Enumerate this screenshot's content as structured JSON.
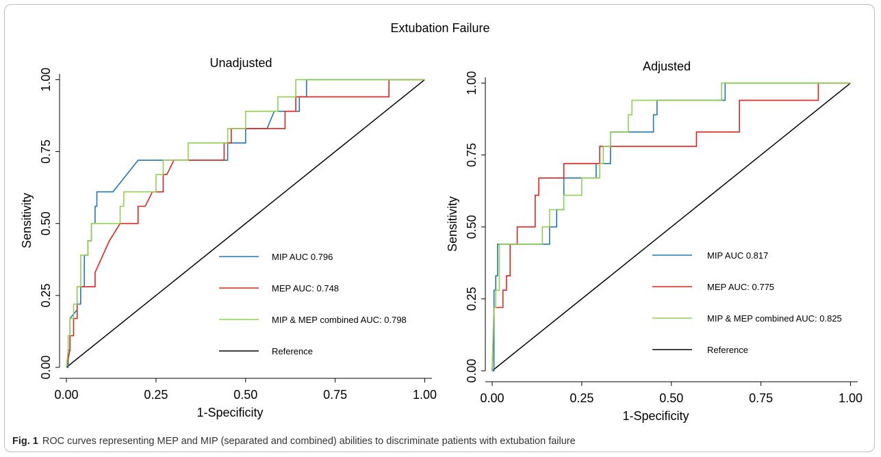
{
  "figure": {
    "overall_title": "Extubation Failure",
    "caption_label": "Fig. 1",
    "caption_text": "ROC curves representing MEP and MIP (separated and combined) abilities to discriminate patients with extubation failure"
  },
  "colors": {
    "mip": "#1f77b4",
    "mep": "#e3211c",
    "combined": "#8fd14f",
    "reference": "#000000"
  },
  "chart_data": [
    {
      "type": "line",
      "title": "Unadjusted",
      "xlabel": "1-Specificity",
      "ylabel": "Sensitivity",
      "xlim": [
        0,
        1.02
      ],
      "ylim": [
        0,
        1.02
      ],
      "xticks": [
        "0.00",
        "0.25",
        "0.50",
        "0.75",
        "1.00"
      ],
      "yticks": [
        "0.00",
        "0.25",
        "0.50",
        "0.75",
        "1.00"
      ],
      "legend": [
        "MIP AUC 0.796",
        "MEP AUC: 0.748",
        "MIP & MEP combined AUC: 0.798",
        "Reference"
      ],
      "legend_placement": "bottom-right",
      "series": [
        {
          "name": "MIP AUC 0.796",
          "color_key": "mip",
          "x": [
            0,
            0.005,
            0.005,
            0.01,
            0.01,
            0.03,
            0.03,
            0.04,
            0.04,
            0.05,
            0.05,
            0.06,
            0.06,
            0.07,
            0.07,
            0.08,
            0.08,
            0.085,
            0.085,
            0.13,
            0.2,
            0.27,
            0.33,
            0.43,
            0.45,
            0.45,
            0.48,
            0.48,
            0.5,
            0.5,
            0.56,
            0.58,
            0.58,
            0.63,
            0.63,
            0.65,
            0.65,
            0.67,
            0.67,
            1.0
          ],
          "y": [
            0,
            0,
            0.06,
            0.06,
            0.17,
            0.2,
            0.22,
            0.22,
            0.28,
            0.28,
            0.39,
            0.39,
            0.44,
            0.44,
            0.5,
            0.5,
            0.56,
            0.56,
            0.61,
            0.61,
            0.72,
            0.72,
            0.72,
            0.72,
            0.72,
            0.78,
            0.78,
            0.78,
            0.78,
            0.83,
            0.83,
            0.89,
            0.89,
            0.89,
            0.89,
            0.89,
            0.94,
            0.94,
            1.0,
            1.0
          ]
        },
        {
          "name": "MEP AUC: 0.748",
          "color_key": "mep",
          "x": [
            0,
            0.01,
            0.01,
            0.02,
            0.02,
            0.03,
            0.03,
            0.06,
            0.06,
            0.08,
            0.08,
            0.12,
            0.15,
            0.16,
            0.19,
            0.2,
            0.2,
            0.22,
            0.24,
            0.24,
            0.27,
            0.27,
            0.28,
            0.28,
            0.3,
            0.33,
            0.43,
            0.44,
            0.44,
            0.46,
            0.46,
            0.61,
            0.61,
            0.62,
            0.62,
            0.64,
            0.64,
            0.9,
            0.9,
            1.0
          ],
          "y": [
            0,
            0.06,
            0.11,
            0.11,
            0.17,
            0.17,
            0.28,
            0.28,
            0.28,
            0.28,
            0.33,
            0.44,
            0.5,
            0.5,
            0.5,
            0.5,
            0.56,
            0.56,
            0.61,
            0.61,
            0.61,
            0.67,
            0.67,
            0.67,
            0.72,
            0.72,
            0.72,
            0.72,
            0.78,
            0.78,
            0.83,
            0.83,
            0.89,
            0.89,
            0.89,
            0.89,
            0.94,
            0.94,
            1.0,
            1.0
          ]
        },
        {
          "name": "MIP & MEP combined AUC: 0.798",
          "color_key": "combined",
          "x": [
            0,
            0.005,
            0.005,
            0.01,
            0.01,
            0.02,
            0.02,
            0.03,
            0.03,
            0.04,
            0.04,
            0.06,
            0.06,
            0.07,
            0.07,
            0.08,
            0.08,
            0.15,
            0.15,
            0.16,
            0.16,
            0.25,
            0.25,
            0.27,
            0.27,
            0.34,
            0.34,
            0.45,
            0.45,
            0.5,
            0.5,
            0.59,
            0.59,
            0.61,
            0.61,
            0.64,
            0.64,
            0.66,
            0.66,
            1.0
          ],
          "y": [
            0,
            0.06,
            0.11,
            0.11,
            0.17,
            0.17,
            0.22,
            0.22,
            0.28,
            0.28,
            0.39,
            0.39,
            0.44,
            0.44,
            0.5,
            0.5,
            0.5,
            0.5,
            0.56,
            0.56,
            0.61,
            0.61,
            0.67,
            0.67,
            0.72,
            0.72,
            0.78,
            0.78,
            0.83,
            0.83,
            0.89,
            0.89,
            0.94,
            0.94,
            0.94,
            0.94,
            1.0,
            1.0,
            1.0,
            1.0
          ]
        },
        {
          "name": "Reference",
          "color_key": "reference",
          "x": [
            0,
            1.0
          ],
          "y": [
            0,
            1.0
          ]
        }
      ]
    },
    {
      "type": "line",
      "title": "Adjusted",
      "xlabel": "1-Specificity",
      "ylabel": "Sensitivity",
      "xlim": [
        0,
        1.02
      ],
      "ylim": [
        0,
        1.02
      ],
      "xticks": [
        "0.00",
        "0.25",
        "0.50",
        "0.75",
        "1.00"
      ],
      "yticks": [
        "0.00",
        "0.25",
        "0.50",
        "0.75",
        "1.00"
      ],
      "legend": [
        "MIP AUC 0.817",
        "MEP AUC: 0.775",
        "MIP & MEP combined AUC: 0.825",
        "Reference"
      ],
      "legend_placement": "bottom-right",
      "series": [
        {
          "name": "MIP AUC 0.817",
          "color_key": "mip",
          "x": [
            0,
            0.005,
            0.005,
            0.01,
            0.01,
            0.015,
            0.015,
            0.02,
            0.02,
            0.14,
            0.16,
            0.16,
            0.18,
            0.18,
            0.2,
            0.2,
            0.29,
            0.29,
            0.33,
            0.33,
            0.45,
            0.45,
            0.46,
            0.46,
            0.65,
            0.65,
            1.0
          ],
          "y": [
            0,
            0,
            0.28,
            0.28,
            0.33,
            0.33,
            0.44,
            0.44,
            0.44,
            0.44,
            0.44,
            0.5,
            0.5,
            0.56,
            0.56,
            0.67,
            0.67,
            0.72,
            0.72,
            0.83,
            0.83,
            0.89,
            0.89,
            0.94,
            0.94,
            1.0,
            1.0
          ]
        },
        {
          "name": "MEP AUC: 0.775",
          "color_key": "mep",
          "x": [
            0,
            0.005,
            0.005,
            0.02,
            0.02,
            0.03,
            0.03,
            0.04,
            0.04,
            0.05,
            0.05,
            0.07,
            0.07,
            0.12,
            0.12,
            0.13,
            0.13,
            0.2,
            0.2,
            0.29,
            0.3,
            0.3,
            0.57,
            0.57,
            0.69,
            0.69,
            0.91,
            0.91,
            1.0
          ],
          "y": [
            0,
            0.22,
            0.22,
            0.22,
            0.22,
            0.22,
            0.28,
            0.28,
            0.33,
            0.33,
            0.44,
            0.44,
            0.5,
            0.5,
            0.61,
            0.61,
            0.67,
            0.67,
            0.72,
            0.72,
            0.72,
            0.78,
            0.78,
            0.83,
            0.83,
            0.94,
            0.94,
            1.0,
            1.0
          ]
        },
        {
          "name": "MIP & MEP combined AUC: 0.825",
          "color_key": "combined",
          "x": [
            0,
            0.005,
            0.005,
            0.01,
            0.01,
            0.02,
            0.02,
            0.14,
            0.14,
            0.16,
            0.16,
            0.2,
            0.2,
            0.25,
            0.25,
            0.3,
            0.3,
            0.31,
            0.31,
            0.33,
            0.33,
            0.38,
            0.38,
            0.39,
            0.39,
            0.64,
            0.64,
            1.0
          ],
          "y": [
            0,
            0.22,
            0.22,
            0.22,
            0.28,
            0.28,
            0.44,
            0.44,
            0.5,
            0.5,
            0.56,
            0.56,
            0.61,
            0.61,
            0.67,
            0.67,
            0.72,
            0.72,
            0.78,
            0.78,
            0.83,
            0.83,
            0.89,
            0.89,
            0.94,
            0.94,
            1.0,
            1.0
          ]
        },
        {
          "name": "Reference",
          "color_key": "reference",
          "x": [
            0,
            1.0
          ],
          "y": [
            0,
            1.0
          ]
        }
      ]
    }
  ]
}
